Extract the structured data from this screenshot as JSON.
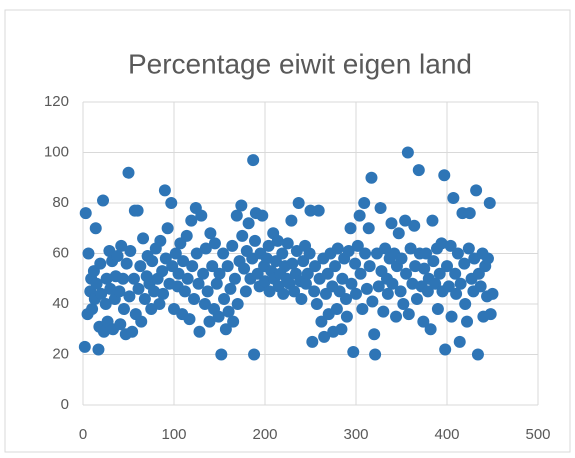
{
  "chart_data": {
    "type": "scatter",
    "title": "Percentage eiwit eigen land",
    "color": "#2e75b6",
    "grid": true,
    "xlim": [
      0,
      500
    ],
    "xticks": [
      0,
      100,
      200,
      300,
      400,
      500
    ],
    "ylim": [
      0,
      120
    ],
    "yticks": [
      0,
      20,
      40,
      60,
      80,
      100,
      120
    ],
    "x": [
      2,
      3,
      5,
      6,
      8,
      9,
      10,
      12,
      13,
      14,
      15,
      17,
      18,
      19,
      20,
      22,
      23,
      25,
      26,
      27,
      29,
      30,
      32,
      33,
      35,
      36,
      38,
      40,
      41,
      42,
      44,
      45,
      47,
      48,
      50,
      51,
      52,
      54,
      56,
      57,
      58,
      60,
      61,
      63,
      64,
      66,
      68,
      70,
      71,
      73,
      75,
      76,
      78,
      80,
      82,
      84,
      85,
      87,
      88,
      90,
      91,
      93,
      95,
      97,
      98,
      100,
      102,
      104,
      105,
      107,
      109,
      110,
      112,
      114,
      115,
      117,
      119,
      120,
      122,
      124,
      125,
      127,
      128,
      130,
      132,
      134,
      135,
      137,
      139,
      140,
      142,
      144,
      145,
      147,
      149,
      150,
      152,
      154,
      155,
      157,
      159,
      160,
      162,
      164,
      165,
      167,
      169,
      170,
      172,
      174,
      175,
      177,
      179,
      180,
      182,
      184,
      186,
      187,
      188,
      189,
      190,
      192,
      194,
      195,
      197,
      199,
      200,
      202,
      204,
      205,
      207,
      209,
      210,
      212,
      214,
      215,
      217,
      219,
      220,
      222,
      224,
      225,
      227,
      229,
      230,
      232,
      234,
      235,
      237,
      239,
      240,
      242,
      244,
      245,
      247,
      249,
      250,
      252,
      254,
      255,
      257,
      259,
      260,
      262,
      264,
      265,
      267,
      269,
      270,
      272,
      274,
      275,
      277,
      279,
      280,
      282,
      284,
      285,
      287,
      289,
      290,
      292,
      294,
      295,
      297,
      299,
      300,
      302,
      304,
      305,
      307,
      309,
      310,
      312,
      314,
      315,
      317,
      318,
      320,
      321,
      323,
      325,
      327,
      328,
      330,
      332,
      334,
      335,
      337,
      339,
      340,
      342,
      344,
      345,
      347,
      349,
      350,
      352,
      354,
      355,
      357,
      358,
      360,
      362,
      364,
      365,
      367,
      369,
      370,
      372,
      374,
      375,
      377,
      379,
      380,
      382,
      384,
      385,
      387,
      389,
      390,
      392,
      394,
      395,
      397,
      398,
      400,
      402,
      404,
      405,
      407,
      409,
      410,
      412,
      414,
      415,
      417,
      419,
      420,
      422,
      424,
      425,
      427,
      429,
      430,
      432,
      434,
      435,
      437,
      439,
      440,
      442,
      444,
      445,
      447,
      448,
      450
    ],
    "values": [
      23,
      76,
      36,
      60,
      45,
      50,
      38,
      53,
      42,
      70,
      48,
      22,
      31,
      56,
      44,
      81,
      29,
      40,
      50,
      33,
      61,
      46,
      57,
      30,
      42,
      51,
      59,
      45,
      32,
      63,
      50,
      38,
      28,
      56,
      92,
      43,
      61,
      29,
      50,
      77,
      36,
      77,
      46,
      55,
      33,
      66,
      42,
      51,
      59,
      48,
      38,
      57,
      45,
      62,
      50,
      40,
      65,
      53,
      44,
      85,
      58,
      70,
      48,
      80,
      55,
      38,
      60,
      47,
      52,
      64,
      36,
      57,
      45,
      67,
      50,
      34,
      73,
      55,
      42,
      78,
      60,
      48,
      29,
      75,
      52,
      40,
      62,
      45,
      33,
      68,
      55,
      38,
      64,
      48,
      35,
      52,
      20,
      60,
      42,
      30,
      55,
      37,
      46,
      63,
      33,
      50,
      75,
      40,
      57,
      79,
      67,
      54,
      45,
      61,
      72,
      50,
      58,
      97,
      20,
      65,
      76,
      52,
      47,
      60,
      75,
      55,
      49,
      58,
      63,
      45,
      53,
      68,
      50,
      57,
      65,
      47,
      52,
      60,
      44,
      55,
      50,
      64,
      48,
      73,
      56,
      45,
      52,
      61,
      80,
      49,
      42,
      57,
      63,
      48,
      52,
      60,
      77,
      25,
      45,
      55,
      40,
      77,
      50,
      33,
      58,
      27,
      44,
      52,
      36,
      60,
      47,
      29,
      55,
      38,
      62,
      45,
      30,
      50,
      58,
      42,
      35,
      61,
      70,
      48,
      21,
      56,
      44,
      63,
      75,
      52,
      38,
      80,
      60,
      46,
      70,
      55,
      90,
      41,
      28,
      20,
      60,
      47,
      78,
      53,
      37,
      62,
      50,
      44,
      58,
      72,
      48,
      60,
      35,
      55,
      68,
      45,
      58,
      40,
      73,
      52,
      100,
      36,
      62,
      48,
      71,
      55,
      42,
      93,
      60,
      47,
      33,
      54,
      60,
      45,
      50,
      30,
      73,
      57,
      48,
      62,
      38,
      52,
      64,
      45,
      91,
      22,
      55,
      47,
      63,
      35,
      82,
      52,
      44,
      60,
      25,
      48,
      76,
      56,
      40,
      33,
      62,
      76,
      50,
      45,
      58,
      85,
      20,
      52,
      47,
      60,
      35,
      55,
      43,
      58,
      80,
      36,
      44
    ]
  }
}
